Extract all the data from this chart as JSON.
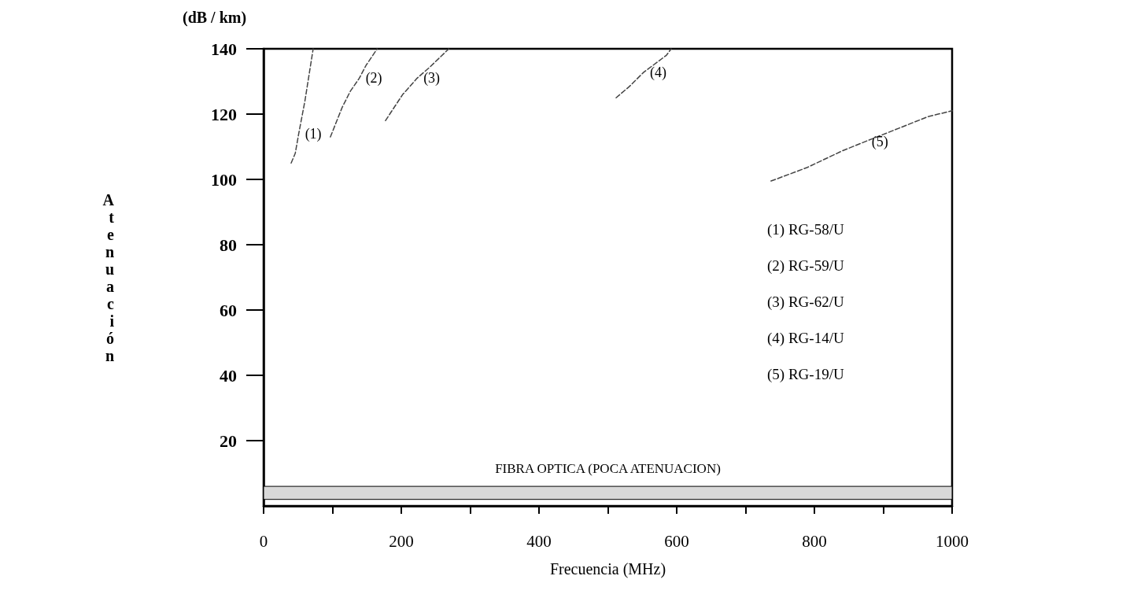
{
  "chart_data": {
    "type": "line",
    "xlabel": "Frecuencia (MHz)",
    "ylabel": "Atenuación",
    "annotations": [
      "(dB / km)",
      "(1) RG-58/U",
      "(2) RG-59/U",
      "(3) RG-62/U",
      "(4) RG-14/U",
      "(5) RG-19/U"
    ],
    "series": [
      {
        "name": "(1)",
        "color": "#444444",
        "x": [
          40,
          46,
          51,
          60,
          72
        ],
        "values": [
          105,
          108,
          114,
          124,
          140
        ]
      },
      {
        "name": "(2)",
        "color": "#444444",
        "x": [
          97,
          114,
          126,
          139,
          149,
          165
        ],
        "values": [
          113,
          122,
          127,
          131,
          135,
          140
        ]
      },
      {
        "name": "(3)",
        "color": "#444444",
        "x": [
          177,
          202,
          223,
          242,
          269
        ],
        "values": [
          118,
          126,
          131,
          134.5,
          140
        ]
      },
      {
        "name": "(4)",
        "color": "#444444",
        "x": [
          512,
          531,
          552,
          585,
          592
        ],
        "values": [
          125,
          128.4,
          132.8,
          138,
          140
        ]
      },
      {
        "name": "(5)",
        "color": "#444444",
        "x": [
          737,
          789,
          840,
          874,
          923,
          966,
          1000
        ],
        "values": [
          99.5,
          103.6,
          108.7,
          111.6,
          115.7,
          119.3,
          121
        ]
      }
    ],
    "bands": [
      {
        "axis": "y",
        "from": 2,
        "to": 6,
        "label": "FIBRA OPTICA (POCA ATENUACION)",
        "color": "#d9d9d9"
      }
    ],
    "xlim": [
      0,
      1000
    ],
    "ylim": [
      0,
      140
    ],
    "xticks": [
      0,
      {
        "value": 100,
        "label": null
      },
      200,
      {
        "value": 300,
        "label": null
      },
      400,
      {
        "value": 500,
        "label": null
      },
      600,
      {
        "value": 700,
        "label": null
      },
      800,
      {
        "value": 900,
        "label": null
      },
      1000
    ],
    "yticks": [
      20,
      40,
      60,
      80,
      100,
      120,
      140
    ],
    "grid": false,
    "legend": false,
    "marker": "none",
    "line_style": "dashed"
  }
}
